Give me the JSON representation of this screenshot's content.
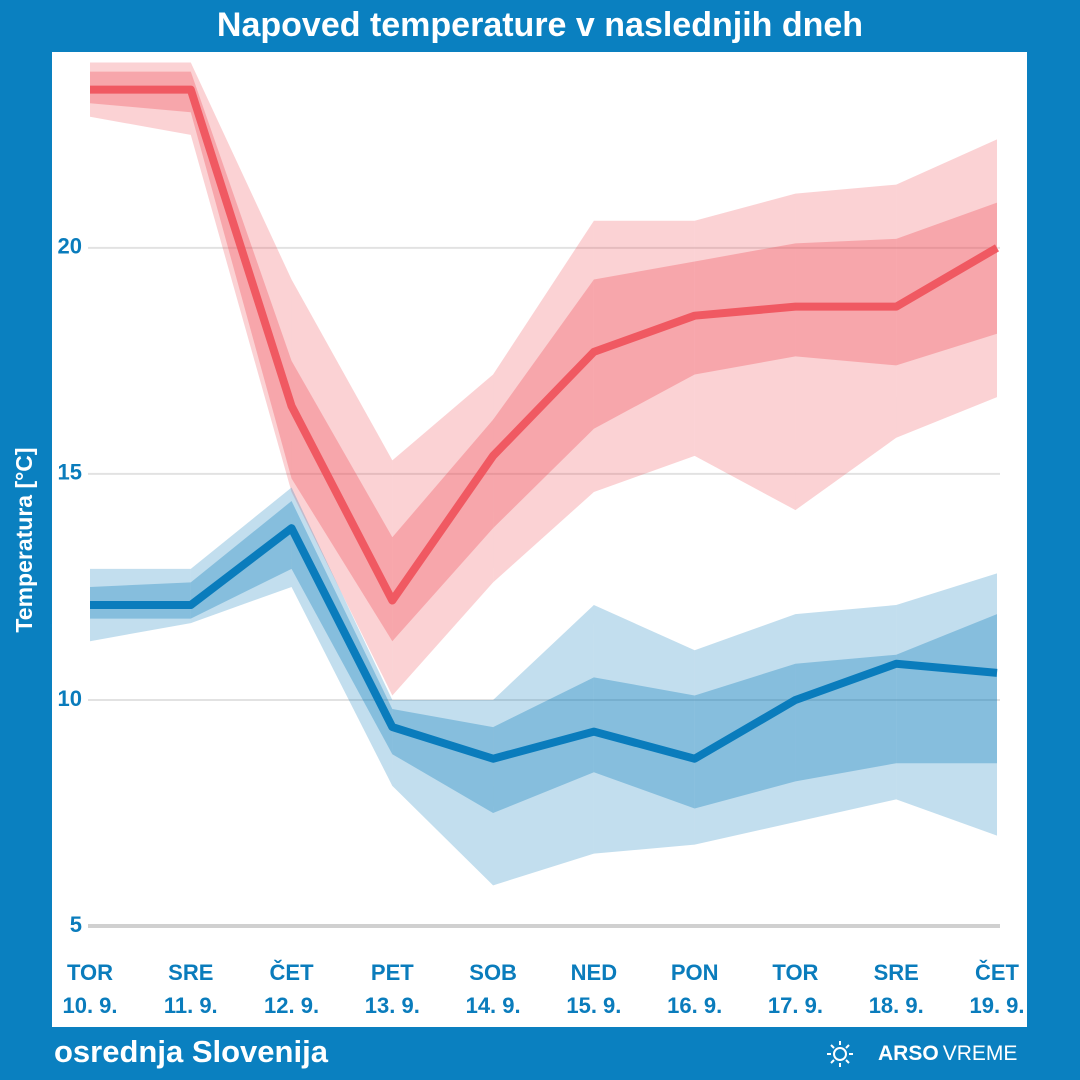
{
  "chart_data": {
    "type": "band-line",
    "title": "Napoved temperature v naslednjih dneh",
    "y_label": "Temperatura [°C]",
    "categories": [
      {
        "day": "TOR",
        "date": "10. 9."
      },
      {
        "day": "SRE",
        "date": "11. 9."
      },
      {
        "day": "ČET",
        "date": "12. 9."
      },
      {
        "day": "PET",
        "date": "13. 9."
      },
      {
        "day": "SOB",
        "date": "14. 9."
      },
      {
        "day": "NED",
        "date": "15. 9."
      },
      {
        "day": "PON",
        "date": "16. 9."
      },
      {
        "day": "TOR",
        "date": "17. 9."
      },
      {
        "day": "SRE",
        "date": "18. 9."
      },
      {
        "day": "ČET",
        "date": "19. 9."
      }
    ],
    "ylim": [
      5,
      24.2
    ],
    "yticks": [
      5,
      10,
      15,
      20
    ],
    "grid": true,
    "series": [
      {
        "color": "#ef4b55",
        "values": [
          23.5,
          23.5,
          16.5,
          12.2,
          15.4,
          17.7,
          18.5,
          18.7,
          18.7,
          20.0
        ],
        "inner_low": [
          23.2,
          23.0,
          14.9,
          11.3,
          13.8,
          16.0,
          17.2,
          17.6,
          17.4,
          18.1
        ],
        "inner_high": [
          23.9,
          23.9,
          17.5,
          13.6,
          16.2,
          19.3,
          19.7,
          20.1,
          20.2,
          21.0
        ],
        "outer_low": [
          22.9,
          22.5,
          14.6,
          10.1,
          12.6,
          14.6,
          15.4,
          14.2,
          15.8,
          16.7
        ],
        "outer_high": [
          24.1,
          24.1,
          19.3,
          15.3,
          17.2,
          20.6,
          20.6,
          21.2,
          21.4,
          22.4
        ]
      },
      {
        "color": "#0a7cbc",
        "values": [
          12.1,
          12.1,
          13.8,
          9.4,
          8.7,
          9.3,
          8.7,
          10.0,
          10.8,
          10.6
        ],
        "inner_low": [
          11.8,
          11.8,
          12.9,
          8.8,
          7.5,
          8.4,
          7.6,
          8.2,
          8.6,
          8.6
        ],
        "inner_high": [
          12.5,
          12.6,
          14.4,
          9.8,
          9.4,
          10.5,
          10.1,
          10.8,
          11.0,
          11.9
        ],
        "outer_low": [
          11.3,
          11.7,
          12.5,
          8.1,
          5.9,
          6.6,
          6.8,
          7.3,
          7.8,
          7.0
        ],
        "outer_high": [
          12.9,
          12.9,
          14.7,
          10.0,
          10.0,
          12.1,
          11.1,
          11.9,
          12.1,
          12.8
        ]
      }
    ]
  },
  "footer": {
    "region": "osrednja Slovenija",
    "logo_bold": "ARSO",
    "logo_light": "VREME"
  }
}
